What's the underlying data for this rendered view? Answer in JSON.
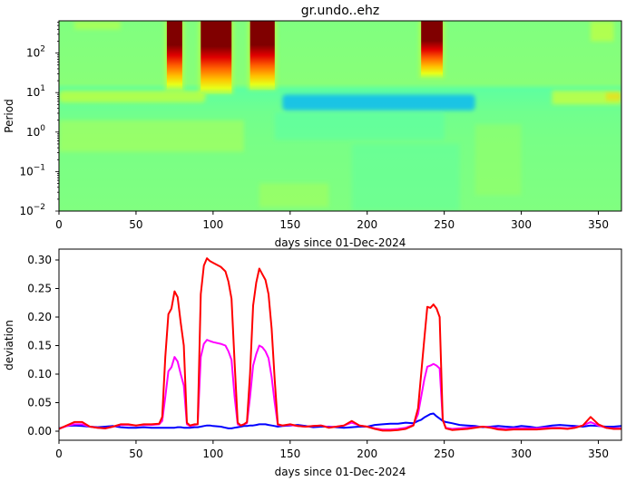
{
  "chart_data": [
    {
      "type": "heatmap",
      "title": "gr.undo..ehz",
      "xlabel": "days since 01-Dec-2024",
      "ylabel": "Period",
      "xlim": [
        0,
        365
      ],
      "ylim_log10": [
        -2,
        2.8
      ],
      "yscale": "log",
      "xticks": [
        0,
        50,
        100,
        150,
        200,
        250,
        300,
        350
      ],
      "yticks": [
        {
          "exp": -2,
          "label": "10",
          "sup": "−2"
        },
        {
          "exp": -1,
          "label": "10",
          "sup": "−1"
        },
        {
          "exp": 0,
          "label": "10",
          "sup": "0"
        },
        {
          "exp": 1,
          "label": "10",
          "sup": "1"
        },
        {
          "exp": 2,
          "label": "10",
          "sup": "2"
        }
      ],
      "colormap": "jet",
      "background_color": "#80ff80",
      "features": [
        {
          "desc": "saturated high-period anomaly",
          "x0": 70,
          "x1": 80,
          "ymin_exp": 1.3,
          "color": "#800000"
        },
        {
          "desc": "saturated high-period anomaly",
          "x0": 92,
          "x1": 112,
          "ymin_exp": 1.2,
          "color": "#800000"
        },
        {
          "desc": "saturated high-period anomaly",
          "x0": 124,
          "x1": 140,
          "ymin_exp": 1.3,
          "color": "#800000"
        },
        {
          "desc": "saturated high-period anomaly",
          "x0": 235,
          "x1": 249,
          "ymin_exp": 1.6,
          "color": "#800000"
        },
        {
          "desc": "low band ~5-10 s period",
          "x0": 145,
          "x1": 270,
          "ymin_exp": 0.55,
          "ymax_exp": 0.95,
          "color": "#00b0ff"
        },
        {
          "desc": "yellow band ~10 s period",
          "x0": 0,
          "x1": 95,
          "ymin_exp": 0.75,
          "ymax_exp": 1.05,
          "color": "#e0ff20"
        }
      ]
    },
    {
      "type": "line",
      "title": "",
      "xlabel": "days since 01-Dec-2024",
      "ylabel": "deviation",
      "xlim": [
        0,
        365
      ],
      "ylim": [
        -0.015,
        0.318
      ],
      "xticks": [
        0,
        50,
        100,
        150,
        200,
        250,
        300,
        350
      ],
      "yticks": [
        0.0,
        0.05,
        0.1,
        0.15,
        0.2,
        0.25,
        0.3
      ],
      "ytick_labels": [
        "0.00",
        "0.05",
        "0.10",
        "0.15",
        "0.20",
        "0.25",
        "0.30"
      ],
      "grid": false,
      "x": [
        0,
        5,
        10,
        15,
        20,
        25,
        30,
        35,
        40,
        45,
        50,
        55,
        60,
        65,
        67,
        69,
        71,
        73,
        75,
        77,
        79,
        81,
        83,
        85,
        88,
        90,
        92,
        94,
        96,
        98,
        100,
        105,
        108,
        110,
        112,
        114,
        116,
        118,
        120,
        122,
        124,
        126,
        128,
        130,
        132,
        134,
        136,
        138,
        140,
        142,
        145,
        150,
        155,
        160,
        165,
        170,
        175,
        180,
        185,
        190,
        195,
        200,
        205,
        210,
        215,
        220,
        225,
        230,
        233,
        235,
        237,
        239,
        241,
        243,
        245,
        247,
        249,
        251,
        255,
        260,
        265,
        270,
        275,
        280,
        285,
        290,
        295,
        300,
        305,
        310,
        315,
        320,
        325,
        330,
        335,
        340,
        345,
        350,
        355,
        360,
        365
      ],
      "series": [
        {
          "name": "red",
          "color": "#ff0000",
          "values": [
            0.004,
            0.01,
            0.016,
            0.016,
            0.008,
            0.006,
            0.005,
            0.008,
            0.012,
            0.012,
            0.01,
            0.012,
            0.012,
            0.013,
            0.025,
            0.13,
            0.205,
            0.215,
            0.245,
            0.235,
            0.19,
            0.15,
            0.015,
            0.01,
            0.012,
            0.012,
            0.24,
            0.29,
            0.303,
            0.298,
            0.295,
            0.288,
            0.28,
            0.262,
            0.232,
            0.12,
            0.015,
            0.01,
            0.012,
            0.016,
            0.1,
            0.22,
            0.26,
            0.285,
            0.275,
            0.265,
            0.24,
            0.18,
            0.09,
            0.012,
            0.01,
            0.012,
            0.009,
            0.008,
            0.009,
            0.01,
            0.006,
            0.008,
            0.01,
            0.018,
            0.01,
            0.008,
            0.004,
            0.001,
            0.001,
            0.002,
            0.004,
            0.01,
            0.04,
            0.1,
            0.16,
            0.218,
            0.216,
            0.222,
            0.215,
            0.2,
            0.02,
            0.005,
            0.002,
            0.003,
            0.004,
            0.006,
            0.008,
            0.006,
            0.003,
            0.002,
            0.003,
            0.003,
            0.003,
            0.003,
            0.004,
            0.005,
            0.005,
            0.004,
            0.006,
            0.01,
            0.025,
            0.012,
            0.006,
            0.004,
            0.004
          ]
        },
        {
          "name": "magenta",
          "color": "#ff00ff",
          "values": [
            0.004,
            0.009,
            0.012,
            0.012,
            0.008,
            0.006,
            0.005,
            0.008,
            0.011,
            0.011,
            0.01,
            0.011,
            0.011,
            0.012,
            0.018,
            0.06,
            0.105,
            0.112,
            0.13,
            0.122,
            0.1,
            0.08,
            0.012,
            0.009,
            0.011,
            0.012,
            0.13,
            0.153,
            0.16,
            0.158,
            0.156,
            0.153,
            0.15,
            0.14,
            0.125,
            0.06,
            0.012,
            0.01,
            0.012,
            0.014,
            0.06,
            0.115,
            0.135,
            0.15,
            0.147,
            0.14,
            0.128,
            0.095,
            0.05,
            0.011,
            0.01,
            0.011,
            0.009,
            0.008,
            0.009,
            0.01,
            0.007,
            0.008,
            0.01,
            0.015,
            0.01,
            0.008,
            0.005,
            0.003,
            0.003,
            0.004,
            0.006,
            0.011,
            0.03,
            0.06,
            0.09,
            0.113,
            0.115,
            0.118,
            0.115,
            0.11,
            0.02,
            0.006,
            0.004,
            0.005,
            0.006,
            0.007,
            0.008,
            0.007,
            0.005,
            0.004,
            0.005,
            0.005,
            0.005,
            0.005,
            0.006,
            0.006,
            0.006,
            0.005,
            0.007,
            0.01,
            0.016,
            0.01,
            0.006,
            0.005,
            0.005
          ]
        },
        {
          "name": "blue",
          "color": "#0000ff",
          "values": [
            0.005,
            0.009,
            0.01,
            0.009,
            0.008,
            0.007,
            0.008,
            0.009,
            0.007,
            0.006,
            0.006,
            0.007,
            0.006,
            0.006,
            0.006,
            0.006,
            0.006,
            0.006,
            0.006,
            0.007,
            0.007,
            0.006,
            0.006,
            0.006,
            0.007,
            0.007,
            0.008,
            0.009,
            0.01,
            0.01,
            0.009,
            0.008,
            0.006,
            0.005,
            0.005,
            0.006,
            0.007,
            0.008,
            0.009,
            0.009,
            0.01,
            0.01,
            0.011,
            0.012,
            0.012,
            0.012,
            0.011,
            0.01,
            0.009,
            0.008,
            0.009,
            0.01,
            0.011,
            0.009,
            0.007,
            0.008,
            0.008,
            0.007,
            0.006,
            0.007,
            0.008,
            0.008,
            0.011,
            0.012,
            0.013,
            0.013,
            0.015,
            0.014,
            0.018,
            0.02,
            0.024,
            0.027,
            0.03,
            0.031,
            0.026,
            0.022,
            0.018,
            0.016,
            0.014,
            0.011,
            0.01,
            0.009,
            0.007,
            0.008,
            0.009,
            0.008,
            0.007,
            0.009,
            0.008,
            0.006,
            0.008,
            0.01,
            0.011,
            0.01,
            0.009,
            0.008,
            0.01,
            0.009,
            0.008,
            0.008,
            0.009
          ]
        }
      ]
    }
  ],
  "figure": {
    "top_title": "gr.undo..ehz",
    "top_xlabel": "days since 01-Dec-2024",
    "top_ylabel": "Period",
    "bottom_xlabel": "days since 01-Dec-2024",
    "bottom_ylabel": "deviation"
  }
}
